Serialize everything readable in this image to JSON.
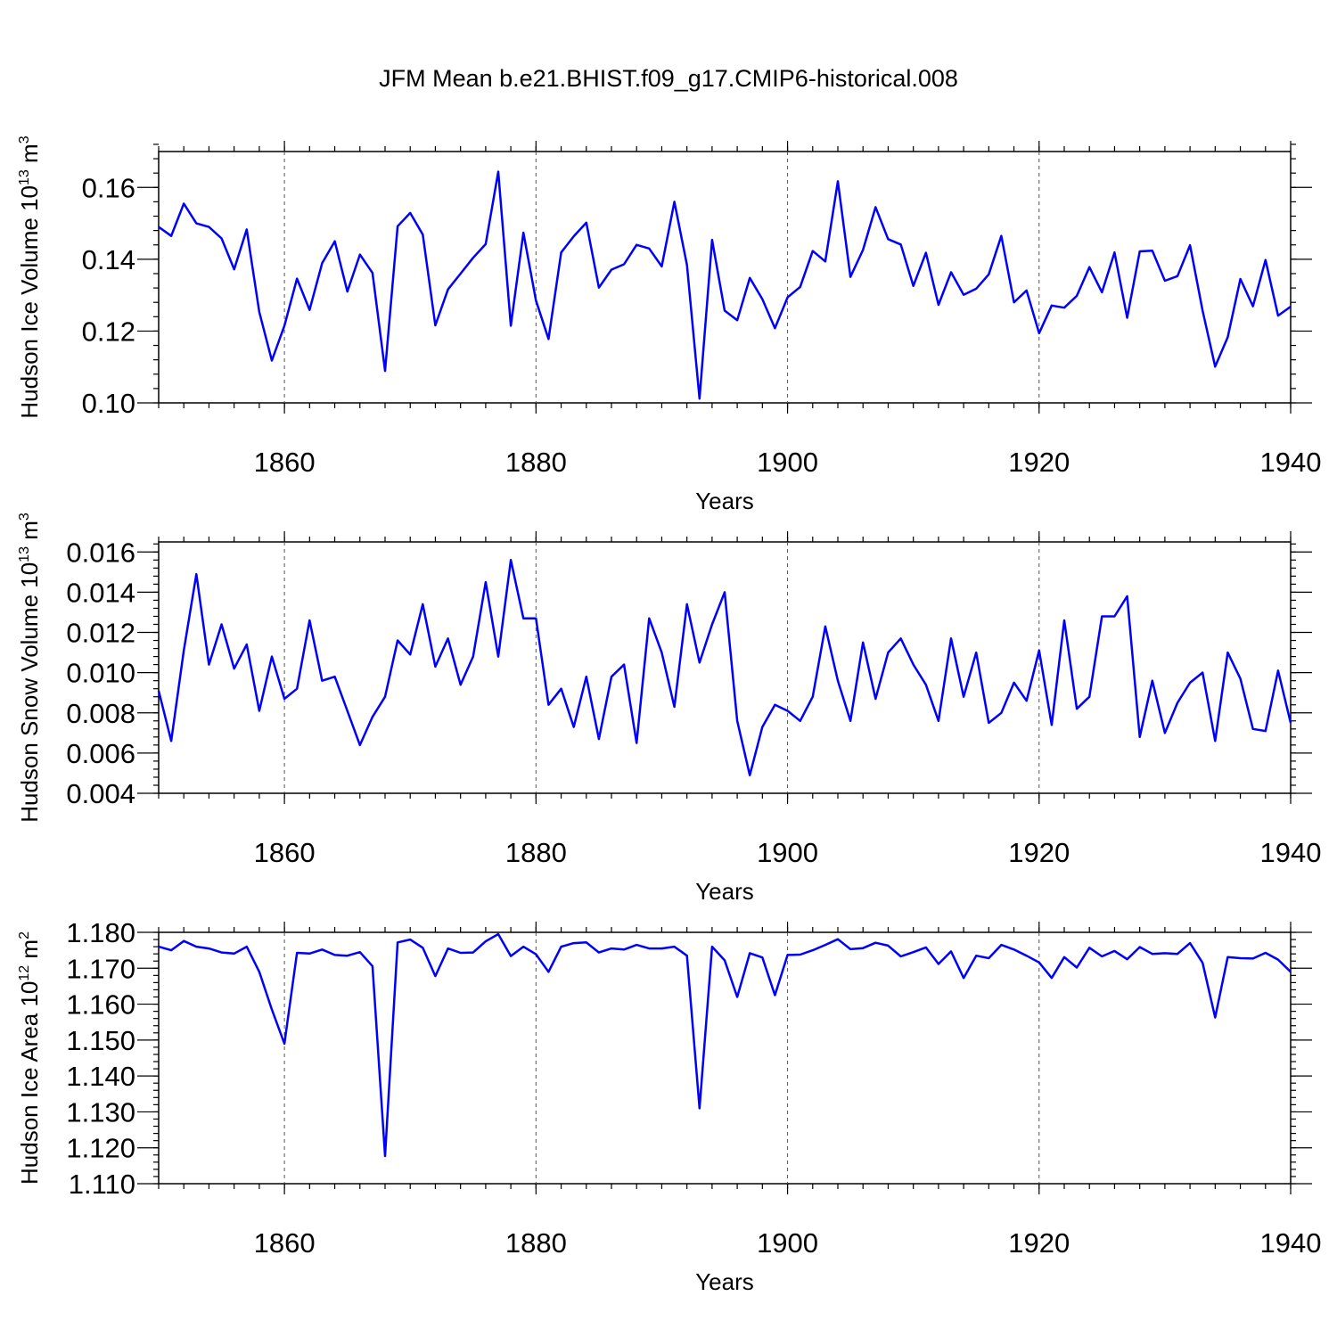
{
  "chart_data": {
    "type": "line",
    "title": "JFM Mean b.e21.BHIST.f09_g17.CMIP6-historical.008",
    "line_color": "#0000ff",
    "x_start": 1850,
    "x_end": 1940,
    "panels": [
      {
        "ylabel_main": "Hudson Ice Volume 10",
        "ylabel_exp": "13",
        "ylabel_unit": " m",
        "ylabel_unit_exp": "3",
        "xlabel": "Years",
        "xlim": [
          1850,
          1940
        ],
        "ylim": [
          0.1,
          0.17
        ],
        "grid_x": [
          1860,
          1880,
          1900,
          1920
        ],
        "x_ticks": [
          1860,
          1880,
          1900,
          1920,
          1940
        ],
        "x_tick_labels": [
          "1860",
          "1880",
          "1900",
          "1920",
          "1940"
        ],
        "y_ticks": [
          0.1,
          0.12,
          0.14,
          0.16
        ],
        "y_tick_labels": [
          "0.10",
          "0.12",
          "0.14",
          "0.16"
        ],
        "y_minor_step": 0.004,
        "values": [
          0.149,
          0.1465,
          0.1555,
          0.15,
          0.149,
          0.1458,
          0.1372,
          0.1483,
          0.1253,
          0.1118,
          0.1215,
          0.1346,
          0.1259,
          0.1389,
          0.145,
          0.131,
          0.1413,
          0.1362,
          0.1089,
          0.1492,
          0.1529,
          0.1469,
          0.1216,
          0.1316,
          0.136,
          0.1404,
          0.1442,
          0.1644,
          0.1215,
          0.1474,
          0.1285,
          0.1178,
          0.1419,
          0.1464,
          0.1502,
          0.1321,
          0.1371,
          0.1386,
          0.144,
          0.143,
          0.138,
          0.156,
          0.1384,
          0.1012,
          0.1454,
          0.1257,
          0.123,
          0.1348,
          0.1289,
          0.1208,
          0.1294,
          0.1323,
          0.1423,
          0.1394,
          0.1617,
          0.1351,
          0.1426,
          0.1545,
          0.1456,
          0.1441,
          0.1326,
          0.1418,
          0.1273,
          0.1364,
          0.1301,
          0.1318,
          0.1358,
          0.1465,
          0.128,
          0.1313,
          0.1194,
          0.1271,
          0.1265,
          0.1298,
          0.1378,
          0.1308,
          0.1419,
          0.1237,
          0.1422,
          0.1424,
          0.134,
          0.1353,
          0.1439,
          0.1257,
          0.1101,
          0.1183,
          0.1345,
          0.1269,
          0.1398,
          0.1243,
          0.1268
        ]
      },
      {
        "ylabel_main": "Hudson Snow Volume 10",
        "ylabel_exp": "13",
        "ylabel_unit": " m",
        "ylabel_unit_exp": "3",
        "xlabel": "Years",
        "xlim": [
          1850,
          1940
        ],
        "ylim": [
          0.004,
          0.0165
        ],
        "grid_x": [
          1860,
          1880,
          1900,
          1920
        ],
        "x_ticks": [
          1860,
          1880,
          1900,
          1920,
          1940
        ],
        "x_tick_labels": [
          "1860",
          "1880",
          "1900",
          "1920",
          "1940"
        ],
        "y_ticks": [
          0.004,
          0.006,
          0.008,
          0.01,
          0.012,
          0.014,
          0.016
        ],
        "y_tick_labels": [
          "0.004",
          "0.006",
          "0.008",
          "0.010",
          "0.012",
          "0.014",
          "0.016"
        ],
        "y_minor_step": 0.0004,
        "values": [
          0.0091,
          0.0066,
          0.0111,
          0.0149,
          0.0104,
          0.0124,
          0.0102,
          0.0114,
          0.0081,
          0.0108,
          0.0087,
          0.0092,
          0.0126,
          0.0096,
          0.0098,
          0.0081,
          0.0064,
          0.0078,
          0.0088,
          0.0116,
          0.0109,
          0.0134,
          0.0103,
          0.0117,
          0.0094,
          0.0108,
          0.0145,
          0.0108,
          0.0156,
          0.0127,
          0.0127,
          0.0084,
          0.0092,
          0.0073,
          0.0098,
          0.0067,
          0.0098,
          0.0104,
          0.0065,
          0.0127,
          0.011,
          0.0083,
          0.0134,
          0.0105,
          0.0124,
          0.014,
          0.0076,
          0.0049,
          0.0073,
          0.0084,
          0.0081,
          0.0076,
          0.0088,
          0.0123,
          0.0096,
          0.0076,
          0.0115,
          0.0087,
          0.011,
          0.0117,
          0.0104,
          0.0094,
          0.0076,
          0.0117,
          0.0088,
          0.011,
          0.0075,
          0.008,
          0.0095,
          0.0086,
          0.0111,
          0.0074,
          0.0126,
          0.0082,
          0.0088,
          0.0128,
          0.0128,
          0.0138,
          0.0068,
          0.0096,
          0.007,
          0.0085,
          0.0095,
          0.01,
          0.0066,
          0.011,
          0.0097,
          0.0072,
          0.0071,
          0.0101,
          0.0075
        ]
      },
      {
        "ylabel_main": "Hudson Ice Area 10",
        "ylabel_exp": "12",
        "ylabel_unit": " m",
        "ylabel_unit_exp": "2",
        "xlabel": "Years",
        "xlim": [
          1850,
          1940
        ],
        "ylim": [
          1.11,
          1.18
        ],
        "grid_x": [
          1860,
          1880,
          1900,
          1920
        ],
        "x_ticks": [
          1860,
          1880,
          1900,
          1920,
          1940
        ],
        "x_tick_labels": [
          "1860",
          "1880",
          "1900",
          "1920",
          "1940"
        ],
        "y_ticks": [
          1.11,
          1.12,
          1.13,
          1.14,
          1.15,
          1.16,
          1.17,
          1.18
        ],
        "y_tick_labels": [
          "1.110",
          "1.120",
          "1.130",
          "1.140",
          "1.150",
          "1.160",
          "1.170",
          "1.180"
        ],
        "y_minor_step": 0.002,
        "values": [
          1.176,
          1.175,
          1.1776,
          1.176,
          1.1755,
          1.1744,
          1.1741,
          1.176,
          1.169,
          1.1585,
          1.149,
          1.1743,
          1.1741,
          1.1752,
          1.1737,
          1.1735,
          1.1745,
          1.1706,
          1.1177,
          1.1772,
          1.178,
          1.1757,
          1.1678,
          1.1755,
          1.1743,
          1.1744,
          1.1775,
          1.1795,
          1.1734,
          1.176,
          1.1739,
          1.169,
          1.176,
          1.177,
          1.1772,
          1.1744,
          1.1755,
          1.1752,
          1.1765,
          1.1755,
          1.1755,
          1.176,
          1.1735,
          1.131,
          1.176,
          1.1722,
          1.162,
          1.1742,
          1.173,
          1.1625,
          1.1737,
          1.1738,
          1.175,
          1.1765,
          1.1781,
          1.1753,
          1.1756,
          1.1771,
          1.1763,
          1.1733,
          1.1745,
          1.1758,
          1.1712,
          1.1747,
          1.1673,
          1.1735,
          1.1728,
          1.1765,
          1.1752,
          1.1735,
          1.1716,
          1.1673,
          1.1731,
          1.1702,
          1.1757,
          1.1733,
          1.1748,
          1.1725,
          1.1759,
          1.174,
          1.1742,
          1.174,
          1.177,
          1.1715,
          1.1563,
          1.1731,
          1.1728,
          1.1727,
          1.1743,
          1.1724,
          1.169
        ]
      }
    ]
  }
}
